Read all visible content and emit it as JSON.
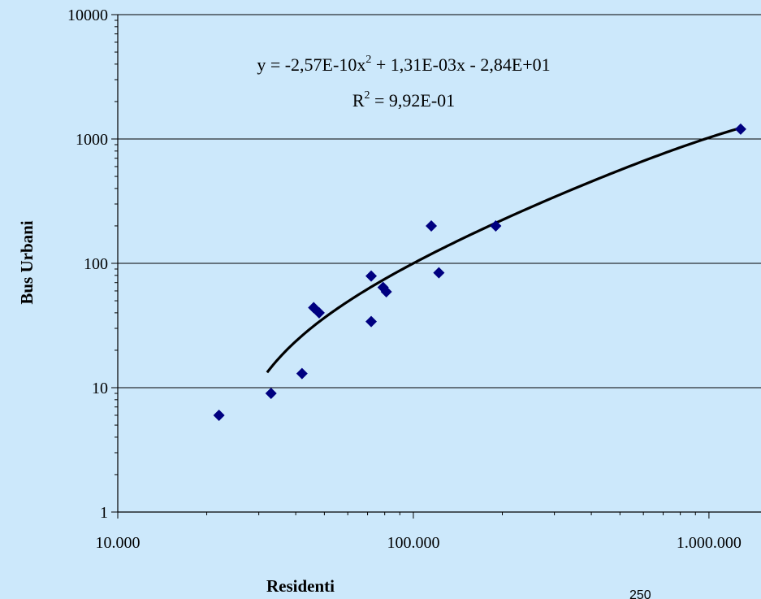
{
  "chart_data": {
    "type": "scatter",
    "title": "",
    "xlabel": "Residenti",
    "ylabel": "Bus Urbani",
    "x_scale": "log",
    "y_scale": "log",
    "xlim": [
      10000,
      1500000
    ],
    "ylim": [
      1,
      10000
    ],
    "x_ticks": [
      {
        "value": 10000,
        "label": "10.000"
      },
      {
        "value": 100000,
        "label": "100.000"
      },
      {
        "value": 1000000,
        "label": "1.000.000"
      }
    ],
    "y_ticks": [
      {
        "value": 1,
        "label": "1"
      },
      {
        "value": 10,
        "label": "10"
      },
      {
        "value": 100,
        "label": "100"
      },
      {
        "value": 1000,
        "label": "1000"
      },
      {
        "value": 10000,
        "label": "10000"
      }
    ],
    "grid": "horizontal",
    "marker_color": "#000080",
    "line_color": "#000000",
    "series": [
      {
        "points": [
          {
            "x": 22000,
            "y": 6
          },
          {
            "x": 33000,
            "y": 9
          },
          {
            "x": 42000,
            "y": 13
          },
          {
            "x": 46000,
            "y": 44
          },
          {
            "x": 48000,
            "y": 40
          },
          {
            "x": 72000,
            "y": 79
          },
          {
            "x": 72000,
            "y": 34
          },
          {
            "x": 79000,
            "y": 64
          },
          {
            "x": 81000,
            "y": 59
          },
          {
            "x": 115000,
            "y": 200
          },
          {
            "x": 122000,
            "y": 84
          },
          {
            "x": 190000,
            "y": 200
          },
          {
            "x": 1280000,
            "y": 1200
          }
        ]
      }
    ],
    "trendline": {
      "type": "polynomial",
      "order": 2,
      "coefficients": {
        "a": -2.57e-10,
        "b": 0.00131,
        "c": -28.4
      },
      "x_range": [
        32000,
        1280000
      ],
      "equation": {
        "lhs": "y = -2,57E-10x",
        "sup": "2",
        "rhs": " + 1,31E-03x - 2,84E+01"
      },
      "r_squared": {
        "lhs": "R",
        "sup": "2",
        "rhs": " = 9,92E-01"
      }
    }
  },
  "page_number": "250"
}
